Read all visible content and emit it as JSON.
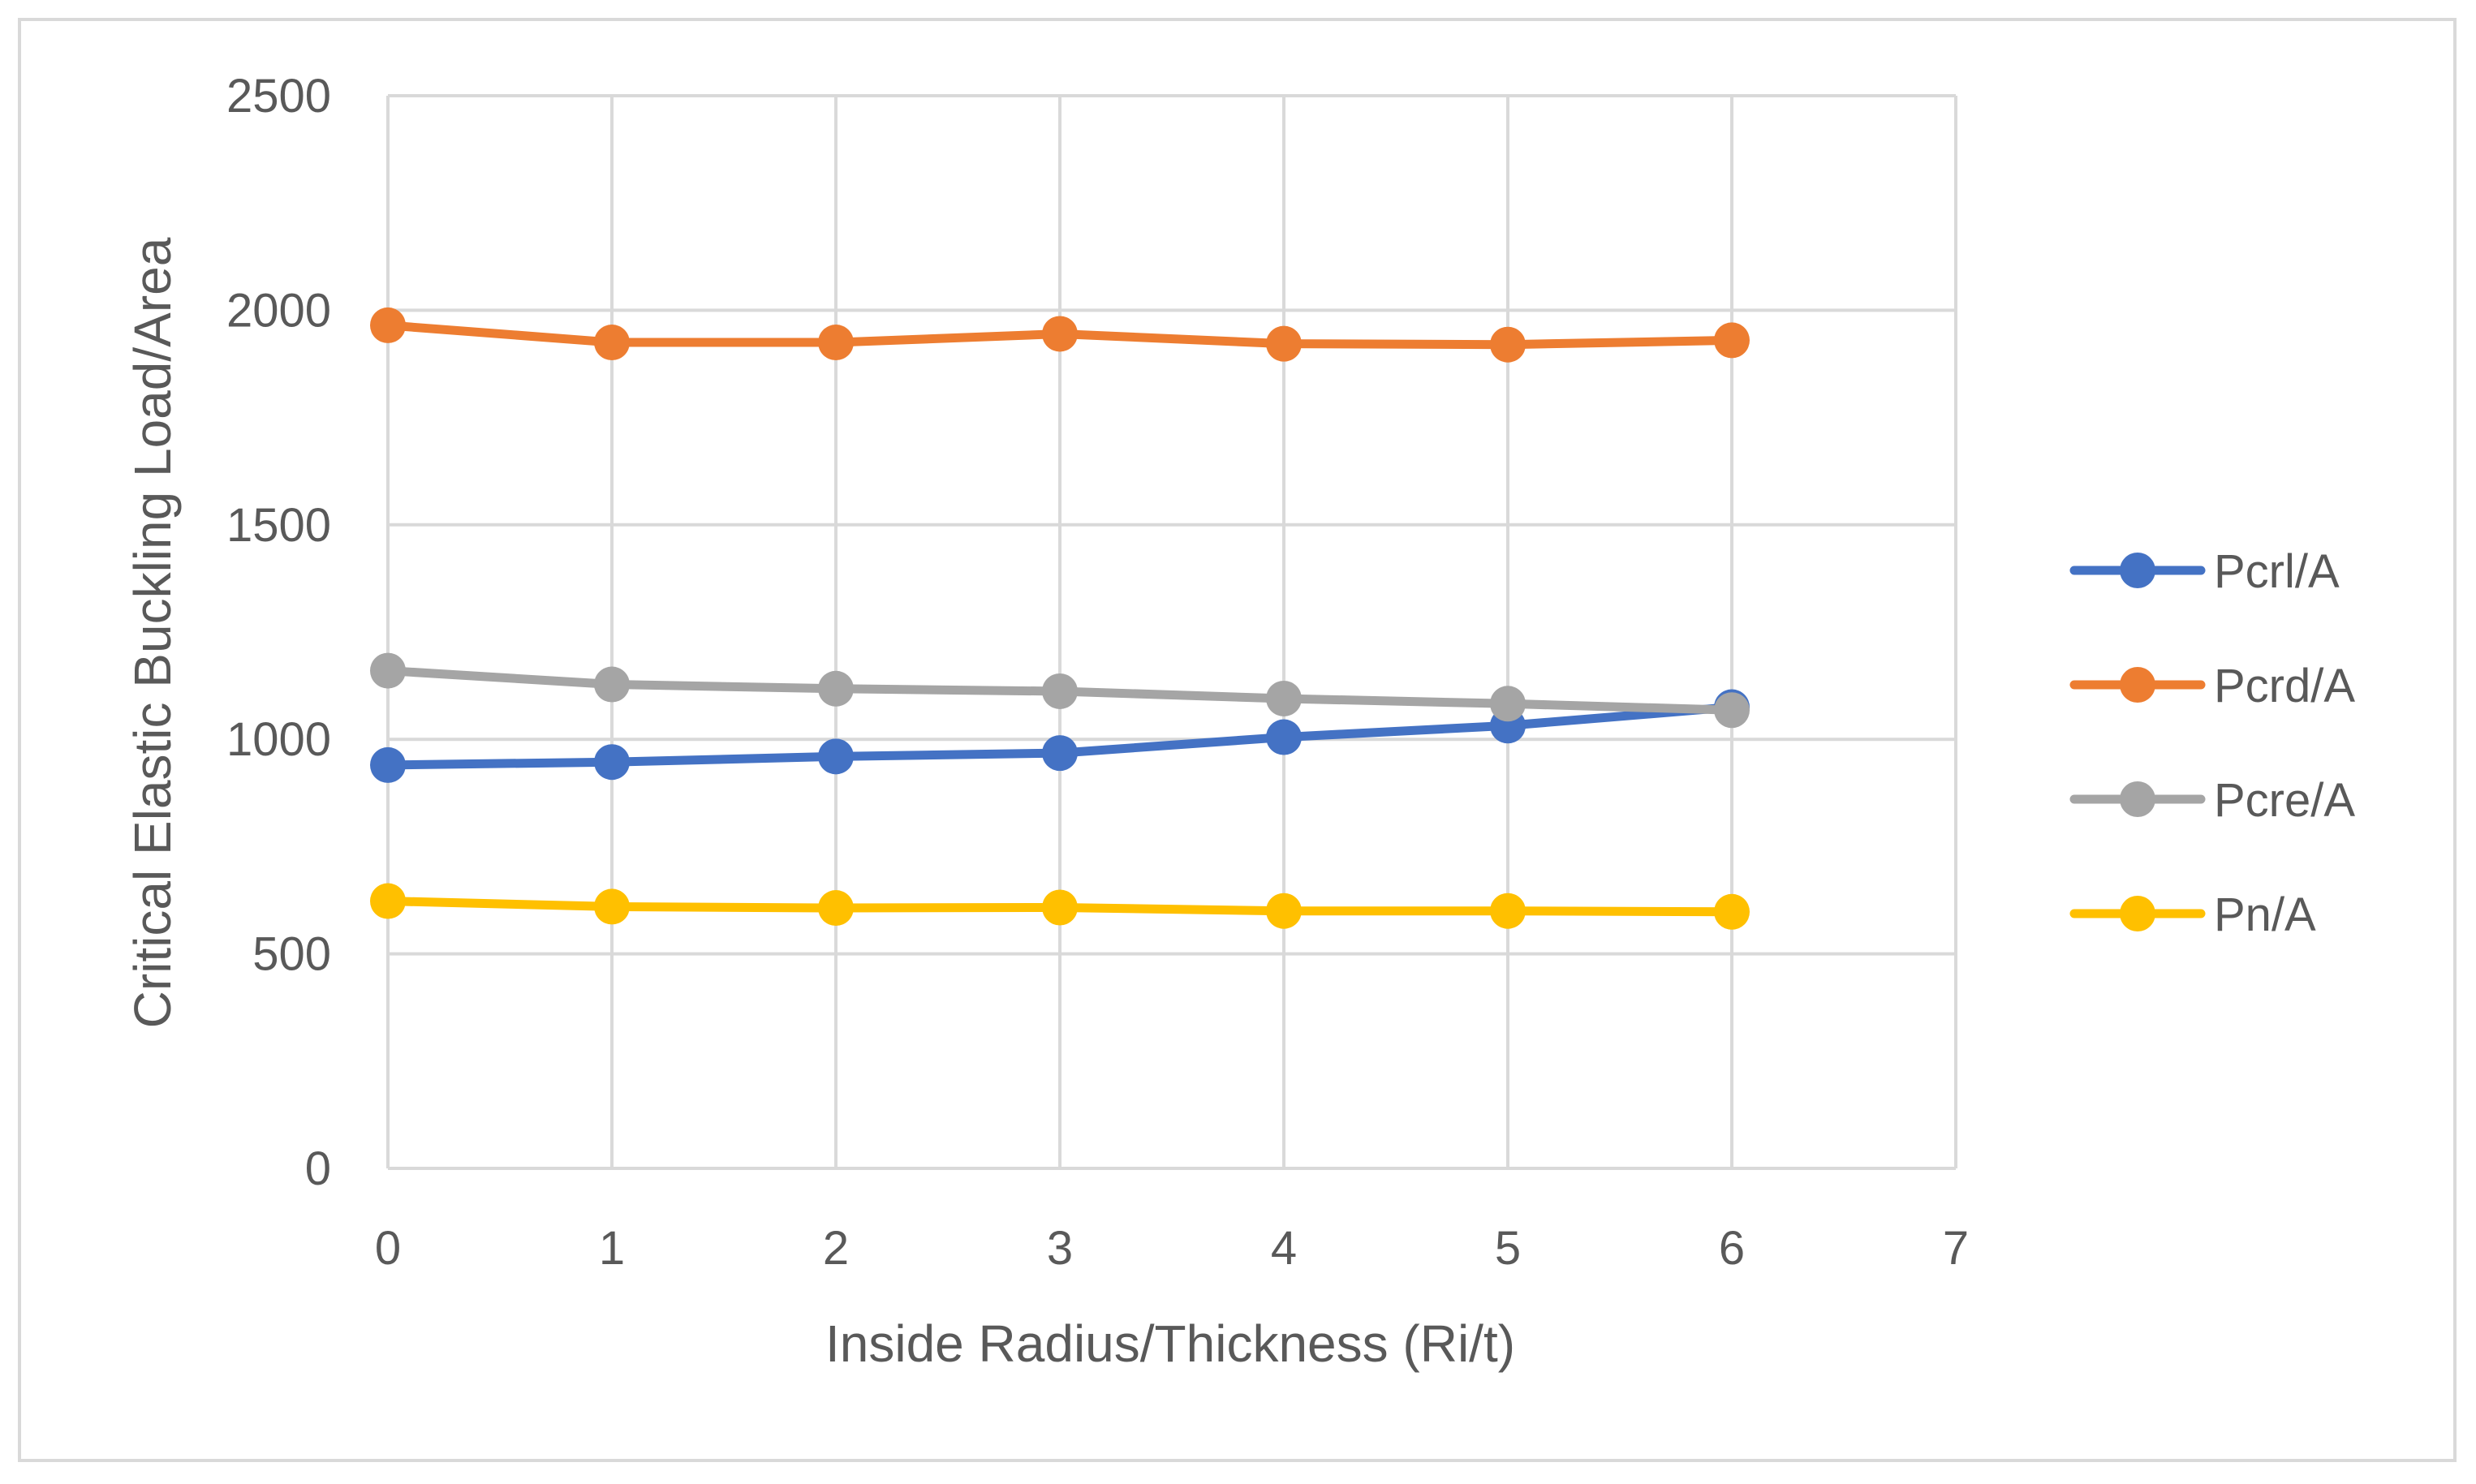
{
  "chart_data": {
    "type": "line",
    "title": "",
    "xlabel": "Inside Radius/Thickness (Ri/t)",
    "ylabel": "Critical Elastic Buckling Load/Area",
    "xlim": [
      0,
      7
    ],
    "ylim": [
      0,
      2500
    ],
    "x_ticks": [
      "0",
      "1",
      "2",
      "3",
      "4",
      "5",
      "6",
      "7"
    ],
    "y_ticks": [
      "0",
      "500",
      "1000",
      "1500",
      "2000",
      "2500"
    ],
    "x_tick_values": [
      0,
      1,
      2,
      3,
      4,
      5,
      6,
      7
    ],
    "y_tick_values": [
      0,
      500,
      1000,
      1500,
      2000,
      2500
    ],
    "grid": true,
    "legend_position": "right",
    "x": [
      0,
      1,
      2,
      3,
      4,
      5,
      6
    ],
    "series": [
      {
        "name": "Pcrl/A",
        "color": "#4472c4",
        "values": [
          940,
          947,
          960,
          968,
          1005,
          1032,
          1075
        ]
      },
      {
        "name": "Pcrd/A",
        "color": "#ed7d31",
        "values": [
          1965,
          1925,
          1925,
          1945,
          1922,
          1920,
          1930
        ]
      },
      {
        "name": "Pcre/A",
        "color": "#a5a5a5",
        "values": [
          1160,
          1128,
          1118,
          1112,
          1095,
          1083,
          1068
        ]
      },
      {
        "name": "Pn/A",
        "color": "#ffc000",
        "values": [
          623,
          610,
          607,
          608,
          600,
          600,
          598
        ]
      }
    ]
  }
}
